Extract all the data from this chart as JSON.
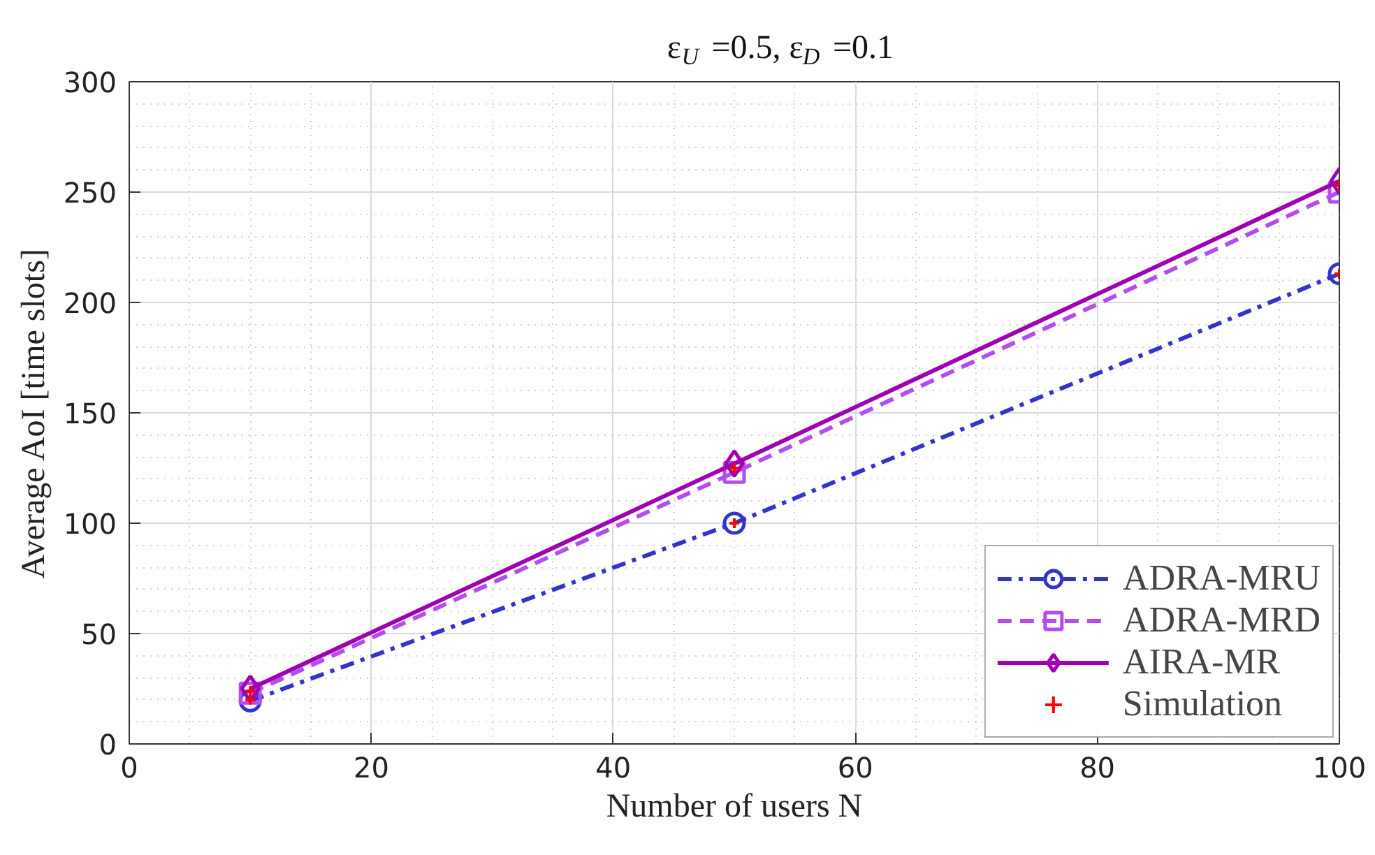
{
  "chart_data": {
    "type": "line",
    "title": "ε$_{U}$ =0.5, ε$_{D}$ =0.1",
    "xlabel": "Number of users N",
    "ylabel": "Average AoI [time slots]",
    "x": [
      10,
      50,
      100
    ],
    "series": [
      {
        "name": "ADRA-MRU",
        "color": "#3333cc",
        "values": [
          19.5,
          100,
          213
        ],
        "marker": "circle",
        "line_style": "dashdot"
      },
      {
        "name": "ADRA-MRD",
        "color": "#b44cf0",
        "values": [
          23,
          123,
          250
        ],
        "marker": "square",
        "line_style": "dashed"
      },
      {
        "name": "AIRA-MR",
        "color": "#a000b4",
        "values": [
          25,
          127,
          255
        ],
        "marker": "diamond",
        "line_style": "solid"
      },
      {
        "name": "Simulation",
        "color": "#ff0000",
        "type": "scatter",
        "marker": "cross",
        "x": [
          10,
          10,
          50,
          50,
          100,
          100
        ],
        "values": [
          20,
          24,
          100,
          125,
          213,
          253
        ]
      }
    ],
    "xlim": [
      0,
      100
    ],
    "ylim": [
      0,
      300
    ],
    "xticks": [
      0,
      20,
      40,
      60,
      80,
      100
    ],
    "yticks": [
      0,
      50,
      100,
      150,
      200,
      250,
      300
    ],
    "grid": true,
    "legend": "bottom right"
  }
}
